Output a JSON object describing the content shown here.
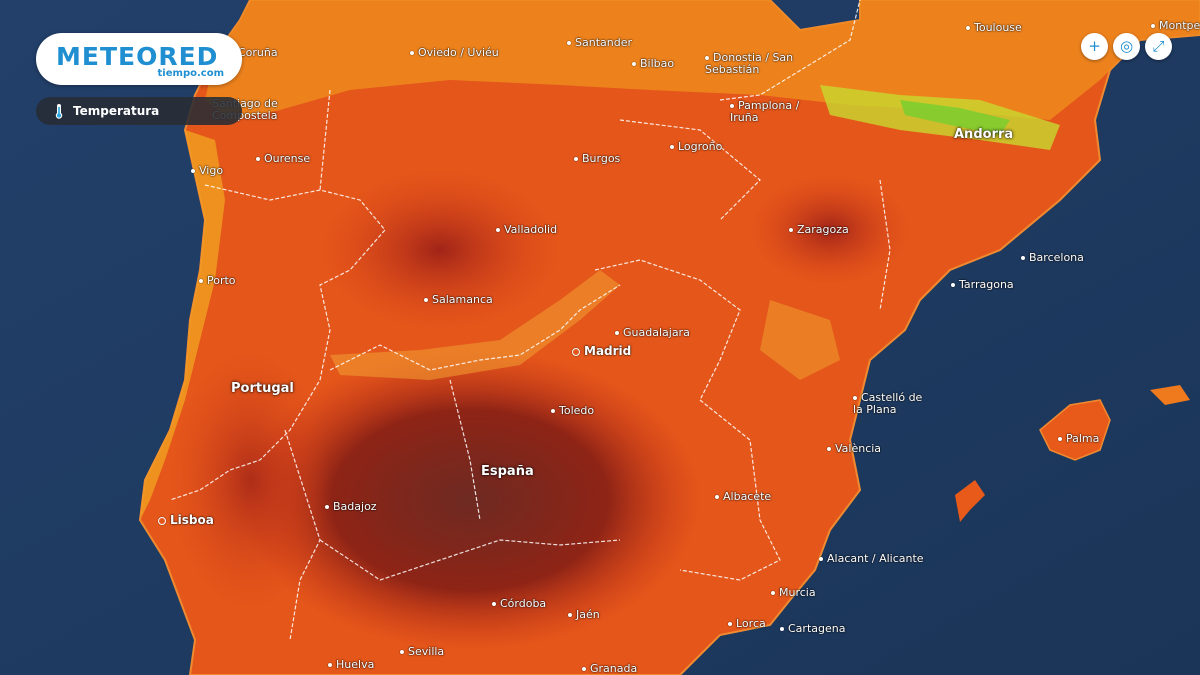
{
  "brand": {
    "name": "METEORED",
    "subdomain": "tiempo.com",
    "color": "#1f8fd1"
  },
  "layer": {
    "label": "Temperatura",
    "icon": "thermometer-icon"
  },
  "controls": [
    {
      "name": "zoom-in-button",
      "glyph": "+",
      "icon": "plus-icon"
    },
    {
      "name": "screenshot-button",
      "glyph": "◎",
      "icon": "camera-icon"
    },
    {
      "name": "fullscreen-button",
      "glyph": "⤢",
      "icon": "fullscreen-icon"
    }
  ],
  "countries": [
    "Portugal",
    "España",
    "Andorra"
  ],
  "capitals": [
    "Madrid",
    "Lisboa"
  ],
  "cities": [
    "Toulouse",
    "Montpellier",
    "Coruña",
    "Oviedo / Uviéu",
    "Santander",
    "Bilbao",
    "Donostia / San Sebastián",
    "Santiago de Compostela",
    "Pamplona / Iruña",
    "Ourense",
    "Vigo",
    "Burgos",
    "Logroño",
    "Valladolid",
    "Zaragoza",
    "Barcelona",
    "Porto",
    "Tarragona",
    "Salamanca",
    "Guadalajara",
    "Toledo",
    "Castelló de la Plana",
    "València",
    "Palma",
    "Badajoz",
    "Albacete",
    "Alacant / Alicante",
    "Córdoba",
    "Jaén",
    "Murcia",
    "Lorca",
    "Cartagena",
    "Sevilla",
    "Huelva",
    "Granada"
  ],
  "colors": {
    "sea": "#1f3d66",
    "hot": "#8a1f14",
    "warm": "#e85a1a",
    "mild": "#f0a020",
    "cool": "#c8e040"
  }
}
